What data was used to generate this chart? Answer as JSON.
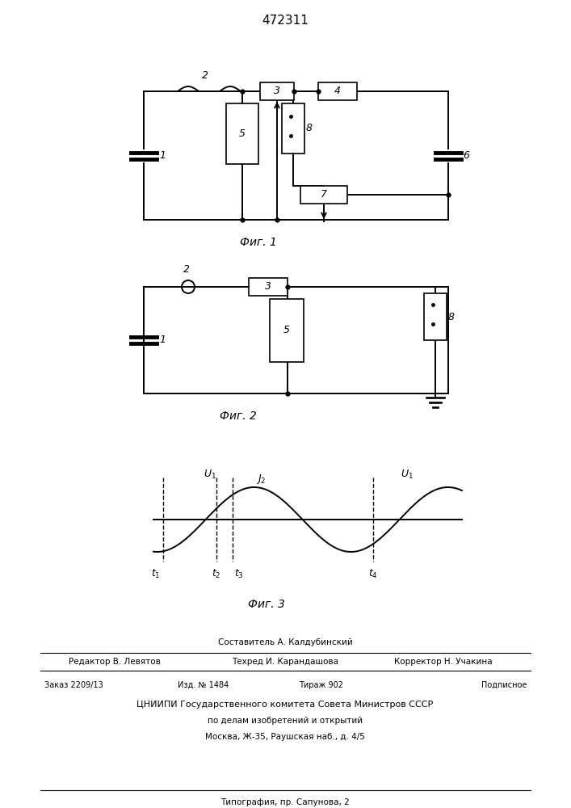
{
  "title": "472311",
  "fig1_label": "Фиг. 1",
  "fig2_label": "Фиг. 2",
  "fig3_label": "Фиг. 3",
  "footer_composer": "Составитель А. Калдубинский",
  "footer_editor": "Редактор В. Левятов",
  "footer_tech": "Техред И. Карандашова",
  "footer_corr": "Корректор Н. Учакина",
  "footer_order": "Заказ 2209/13",
  "footer_izd": "Изд. № 1484",
  "footer_tirazh": "Тираж 902",
  "footer_podp": "Подписное",
  "footer_cnipi": "ЦНИИПИ Государственного комитета Совета Министров СССР",
  "footer_po": "по делам изобретений и открытий",
  "footer_moscow": "Москва, Ж-35, Раушская наб., д. 4/5",
  "footer_tip": "Типография, пр. Сапунова, 2"
}
